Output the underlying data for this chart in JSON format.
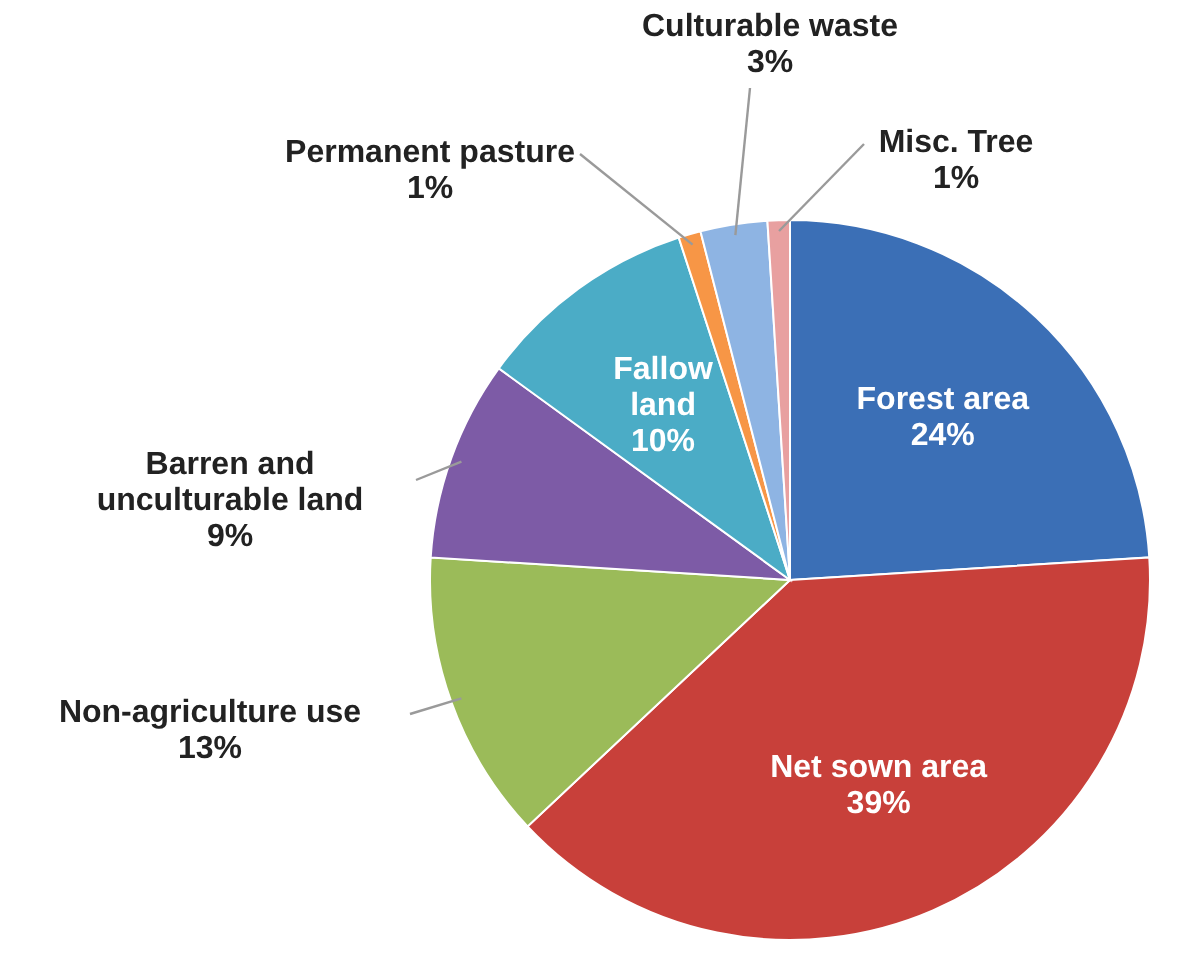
{
  "chart_data": {
    "type": "pie",
    "categories": [
      "Forest area",
      "Net sown area",
      "Non-agriculture use",
      "Barren and unculturable land",
      "Fallow land",
      "Permanent pasture",
      "Culturable waste",
      "Misc. Tree"
    ],
    "values": [
      24,
      39,
      13,
      9,
      10,
      1,
      3,
      1
    ],
    "value_labels": [
      "24%",
      "39%",
      "13%",
      "9%",
      "10%",
      "1%",
      "3%",
      "1%"
    ],
    "colors": [
      "#3b6fb6",
      "#c8403a",
      "#9bbb59",
      "#7d5ba6",
      "#4bacc6",
      "#f79646",
      "#8eb4e3",
      "#e8a0a0"
    ]
  }
}
